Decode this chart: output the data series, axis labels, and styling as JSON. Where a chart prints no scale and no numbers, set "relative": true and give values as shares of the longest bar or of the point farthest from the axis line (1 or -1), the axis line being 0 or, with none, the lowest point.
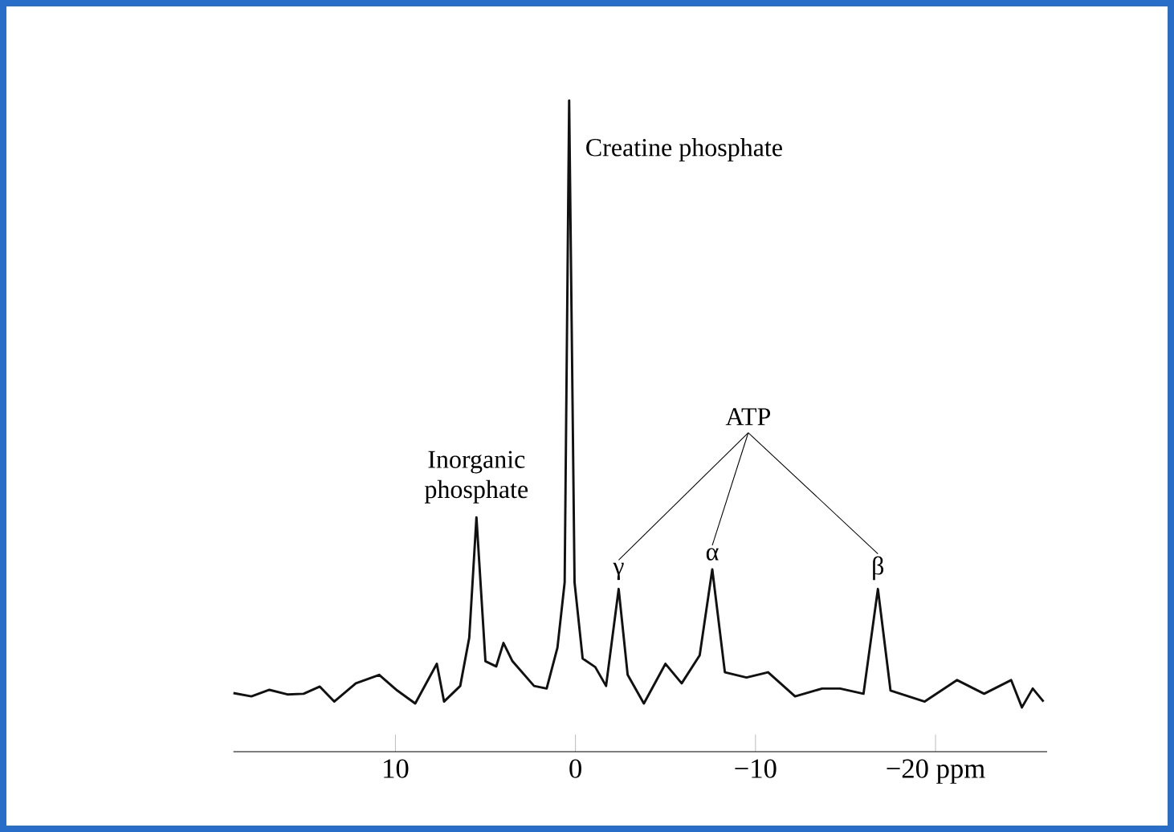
{
  "chart_data": {
    "type": "line",
    "relative": true,
    "color": "#111111",
    "x": [
      19,
      18,
      17,
      16,
      15.1,
      14.2,
      13.4,
      12.2,
      10.9,
      9.9,
      8.9,
      7.7,
      7.3,
      6.4,
      5.9,
      5.5,
      5.0,
      4.4,
      4.0,
      3.5,
      2.3,
      1.6,
      1.0,
      0.6,
      0.35,
      0.05,
      -0.4,
      -1.1,
      -1.7,
      -2.4,
      -2.9,
      -3.8,
      -5.0,
      -5.9,
      -6.9,
      -7.6,
      -8.3,
      -9.5,
      -10.7,
      -12.2,
      -13.7,
      -14.7,
      -16.0,
      -16.8,
      -17.5,
      -19.4,
      -21.2,
      -22.7,
      -24.2,
      -24.8,
      -25.4,
      -26.0
    ],
    "values": [
      0.09,
      0.085,
      0.095,
      0.088,
      0.089,
      0.1,
      0.077,
      0.105,
      0.118,
      0.094,
      0.074,
      0.135,
      0.077,
      0.101,
      0.175,
      0.36,
      0.139,
      0.131,
      0.167,
      0.139,
      0.101,
      0.097,
      0.16,
      0.26,
      1.0,
      0.26,
      0.143,
      0.13,
      0.101,
      0.25,
      0.118,
      0.074,
      0.135,
      0.105,
      0.148,
      0.28,
      0.122,
      0.114,
      0.122,
      0.085,
      0.097,
      0.097,
      0.089,
      0.25,
      0.094,
      0.077,
      0.11,
      0.089,
      0.11,
      0.068,
      0.097,
      0.077
    ],
    "xlim": [
      19,
      -26.2
    ],
    "xticks": [
      10,
      0,
      {
        "value": -10,
        "label": "−10"
      },
      {
        "value": -20,
        "label": "−20 ppm"
      }
    ],
    "grid": false,
    "marker": "none",
    "line_style": "solid",
    "annotations": [
      {
        "text": "Creatine phosphate",
        "x": 0.35,
        "y": 1.0
      },
      {
        "text": "Inorganic phosphate",
        "x": 5.5,
        "y": 0.36
      },
      "ATP",
      {
        "text": "γ",
        "x": -2.4,
        "y": 0.25
      },
      {
        "text": "α",
        "x": -7.6,
        "y": 0.28
      },
      {
        "text": "β",
        "x": -16.8,
        "y": 0.25
      }
    ]
  }
}
